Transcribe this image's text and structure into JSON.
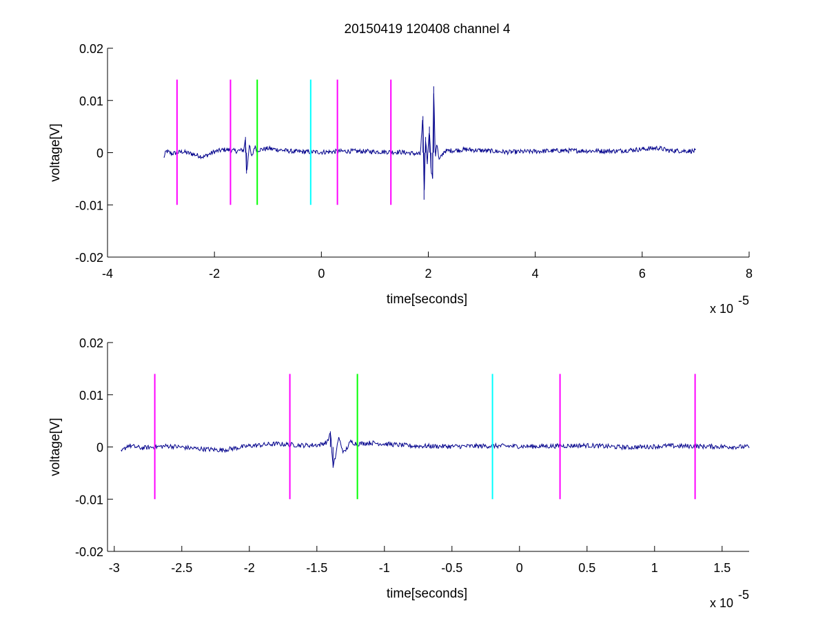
{
  "title": "20150419 120408 channel 4",
  "colors": {
    "signal": "#00008b",
    "magenta": "#ff00ff",
    "green": "#00ff00",
    "cyan": "#00ffff",
    "axis": "#000000"
  },
  "chart_data": [
    {
      "type": "line",
      "title": "20150419 120408 channel 4",
      "xlabel": "time[seconds]",
      "ylabel": "voltage[V]",
      "x_multiplier_base": "x 10",
      "x_multiplier_exp": "-5",
      "xlim": [
        -4,
        8
      ],
      "ylim": [
        -0.02,
        0.02
      ],
      "x_ticks": [
        -4,
        -2,
        0,
        2,
        4,
        6,
        8
      ],
      "x_tick_labels": [
        "-4",
        "-2",
        "0",
        "2",
        "4",
        "6",
        "8"
      ],
      "y_ticks": [
        -0.02,
        -0.01,
        0,
        0.01,
        0.02
      ],
      "y_tick_labels": [
        "-0.02",
        "-0.01",
        "0",
        "0.01",
        "0.02"
      ],
      "grid": false,
      "series": [
        {
          "x_start": -2.95,
          "x_end": 7.0,
          "points": [
            [
              -2.95,
              -0.001
            ],
            [
              -2.9,
              0.0003
            ],
            [
              -2.8,
              -0.0002
            ],
            [
              -2.6,
              0.0002
            ],
            [
              -2.4,
              -0.0003
            ],
            [
              -2.2,
              -0.0008
            ],
            [
              -2.0,
              0.0002
            ],
            [
              -1.8,
              0.0006
            ],
            [
              -1.6,
              0.0003
            ],
            [
              -1.45,
              0.0005
            ],
            [
              -1.42,
              0.003
            ],
            [
              -1.4,
              -0.004
            ],
            [
              -1.38,
              -0.002
            ],
            [
              -1.35,
              0.0015
            ],
            [
              -1.3,
              -0.001
            ],
            [
              -1.25,
              0.0012
            ],
            [
              -1.2,
              0.0005
            ],
            [
              -1.0,
              0.0008
            ],
            [
              -0.5,
              0.0002
            ],
            [
              0.0,
              0.0001
            ],
            [
              0.5,
              0.0003
            ],
            [
              1.0,
              0.0002
            ],
            [
              1.5,
              0.0001
            ],
            [
              1.85,
              -0.0003
            ],
            [
              1.9,
              0.007
            ],
            [
              1.92,
              -0.009
            ],
            [
              1.95,
              0.003
            ],
            [
              1.98,
              -0.002
            ],
            [
              2.02,
              0.005
            ],
            [
              2.05,
              -0.003
            ],
            [
              2.08,
              -0.005
            ],
            [
              2.1,
              0.0127
            ],
            [
              2.13,
              -0.001
            ],
            [
              2.16,
              0.002
            ],
            [
              2.2,
              -0.0015
            ],
            [
              2.3,
              0.0003
            ],
            [
              2.7,
              0.0006
            ],
            [
              3.5,
              0.0001
            ],
            [
              4.5,
              0.0004
            ],
            [
              5.5,
              0.0003
            ],
            [
              6.3,
              0.0009
            ],
            [
              6.5,
              0.0004
            ],
            [
              7.0,
              0.0003
            ]
          ]
        }
      ],
      "markers": [
        {
          "x": -2.7,
          "color": "magenta",
          "y_range": [
            -0.01,
            0.014
          ]
        },
        {
          "x": -1.7,
          "color": "magenta",
          "y_range": [
            -0.01,
            0.014
          ]
        },
        {
          "x": -1.2,
          "color": "green",
          "y_range": [
            -0.01,
            0.014
          ]
        },
        {
          "x": -0.2,
          "color": "cyan",
          "y_range": [
            -0.01,
            0.014
          ]
        },
        {
          "x": 0.3,
          "color": "magenta",
          "y_range": [
            -0.01,
            0.014
          ]
        },
        {
          "x": 1.3,
          "color": "magenta",
          "y_range": [
            -0.01,
            0.014
          ]
        }
      ]
    },
    {
      "type": "line",
      "title": "",
      "xlabel": "time[seconds]",
      "ylabel": "voltage[V]",
      "x_multiplier_base": "x 10",
      "x_multiplier_exp": "-5",
      "xlim": [
        -3.05,
        1.7
      ],
      "ylim": [
        -0.02,
        0.02
      ],
      "x_ticks": [
        -3,
        -2.5,
        -2,
        -1.5,
        -1,
        -0.5,
        0,
        0.5,
        1,
        1.5
      ],
      "x_tick_labels": [
        "-3",
        "-2.5",
        "-2",
        "-1.5",
        "-1",
        "-0.5",
        "0",
        "0.5",
        "1",
        "1.5"
      ],
      "y_ticks": [
        -0.02,
        -0.01,
        0,
        0.01,
        0.02
      ],
      "y_tick_labels": [
        "-0.02",
        "-0.01",
        "0",
        "0.01",
        "0.02"
      ],
      "grid": false,
      "series": [
        {
          "x_start": -2.95,
          "x_end": 1.7,
          "points": [
            [
              -2.95,
              -0.001
            ],
            [
              -2.9,
              0.0003
            ],
            [
              -2.8,
              -0.0002
            ],
            [
              -2.6,
              0.0002
            ],
            [
              -2.4,
              -0.0003
            ],
            [
              -2.2,
              -0.0006
            ],
            [
              -2.0,
              0.0002
            ],
            [
              -1.8,
              0.0006
            ],
            [
              -1.6,
              0.0003
            ],
            [
              -1.48,
              0.0004
            ],
            [
              -1.42,
              0.001
            ],
            [
              -1.4,
              0.003
            ],
            [
              -1.38,
              -0.004
            ],
            [
              -1.36,
              -0.0015
            ],
            [
              -1.34,
              0.0018
            ],
            [
              -1.3,
              -0.0012
            ],
            [
              -1.25,
              0.001
            ],
            [
              -1.2,
              0.0006
            ],
            [
              -1.1,
              0.0008
            ],
            [
              -0.8,
              0.0002
            ],
            [
              -0.5,
              0.0001
            ],
            [
              -0.2,
              0.0002
            ],
            [
              0.1,
              0.0001
            ],
            [
              0.5,
              0.0003
            ],
            [
              0.8,
              -0.0001
            ],
            [
              1.1,
              0.0002
            ],
            [
              1.4,
              0.0001
            ],
            [
              1.7,
              0.0
            ]
          ]
        }
      ],
      "markers": [
        {
          "x": -2.7,
          "color": "magenta",
          "y_range": [
            -0.01,
            0.014
          ]
        },
        {
          "x": -1.7,
          "color": "magenta",
          "y_range": [
            -0.01,
            0.014
          ]
        },
        {
          "x": -1.2,
          "color": "green",
          "y_range": [
            -0.01,
            0.014
          ]
        },
        {
          "x": -0.2,
          "color": "cyan",
          "y_range": [
            -0.01,
            0.014
          ]
        },
        {
          "x": 0.3,
          "color": "magenta",
          "y_range": [
            -0.01,
            0.014
          ]
        },
        {
          "x": 1.3,
          "color": "magenta",
          "y_range": [
            -0.01,
            0.014
          ]
        }
      ]
    }
  ]
}
